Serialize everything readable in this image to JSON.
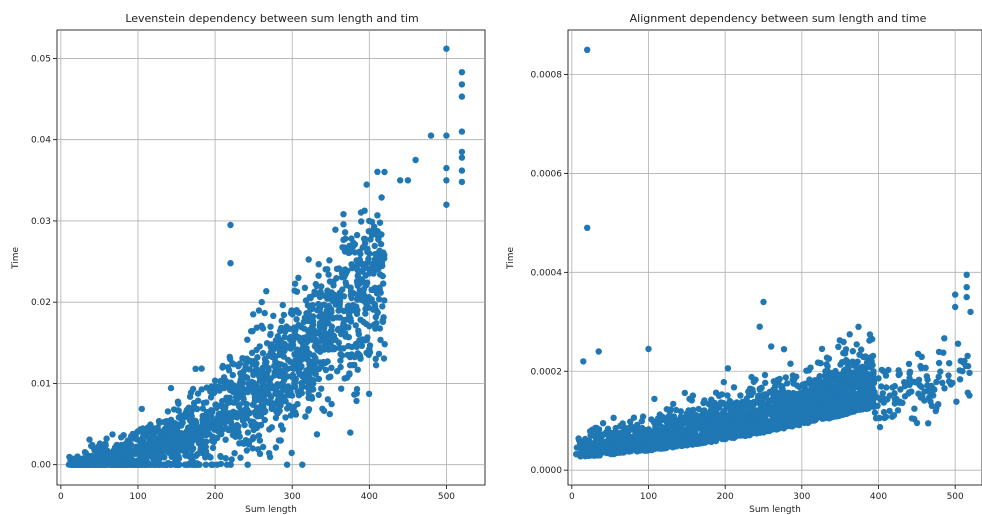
{
  "chart_data": [
    {
      "type": "scatter",
      "title": "Levenstein dependency between sum length and tim",
      "xlabel": "Sum length",
      "ylabel": "Time",
      "xlim": [
        -5,
        550
      ],
      "ylim": [
        -0.0025,
        0.0535
      ],
      "xticks": [
        "0",
        "100",
        "200",
        "300",
        "400",
        "500"
      ],
      "yticks": [
        "0.00",
        "0.01",
        "0.02",
        "0.03",
        "0.04",
        "0.05"
      ],
      "grid": true,
      "color": "#1f77b4",
      "trend": {
        "a": 1.4e-07,
        "p": 2.0
      },
      "notable_points": [
        [
          220,
          0.0295
        ],
        [
          220,
          0.0248
        ],
        [
          500,
          0.0512
        ],
        [
          520,
          0.0483
        ],
        [
          520,
          0.0468
        ],
        [
          520,
          0.0453
        ],
        [
          520,
          0.041
        ],
        [
          520,
          0.0385
        ],
        [
          520,
          0.0378
        ],
        [
          520,
          0.0362
        ],
        [
          520,
          0.0348
        ],
        [
          500,
          0.0365
        ],
        [
          500,
          0.035
        ],
        [
          500,
          0.032
        ],
        [
          480,
          0.0405
        ],
        [
          500,
          0.0405
        ],
        [
          460,
          0.0375
        ],
        [
          440,
          0.035
        ],
        [
          450,
          0.035
        ]
      ]
    },
    {
      "type": "scatter",
      "title": "Alignment dependency between sum length and time",
      "xlabel": "Sum length",
      "ylabel": "Time",
      "xlim": [
        -5,
        535
      ],
      "ylim": [
        -3e-05,
        0.00089
      ],
      "xticks": [
        "0",
        "100",
        "200",
        "300",
        "400",
        "500"
      ],
      "yticks": [
        "0.0000",
        "0.0002",
        "0.0004",
        "0.0006",
        "0.0008"
      ],
      "grid": true,
      "color": "#1f77b4",
      "trend": {
        "base": 3e-05,
        "a": 4e-10,
        "p": 2.0
      },
      "notable_points": [
        [
          20,
          0.00085
        ],
        [
          20,
          0.00049
        ],
        [
          15,
          0.00022
        ],
        [
          35,
          0.00024
        ],
        [
          100,
          0.000245
        ],
        [
          250,
          0.00034
        ],
        [
          245,
          0.00029
        ],
        [
          260,
          0.00025
        ],
        [
          515,
          0.000395
        ],
        [
          515,
          0.00037
        ],
        [
          515,
          0.00035
        ],
        [
          500,
          0.000355
        ],
        [
          500,
          0.00033
        ],
        [
          520,
          0.00032
        ]
      ]
    }
  ]
}
